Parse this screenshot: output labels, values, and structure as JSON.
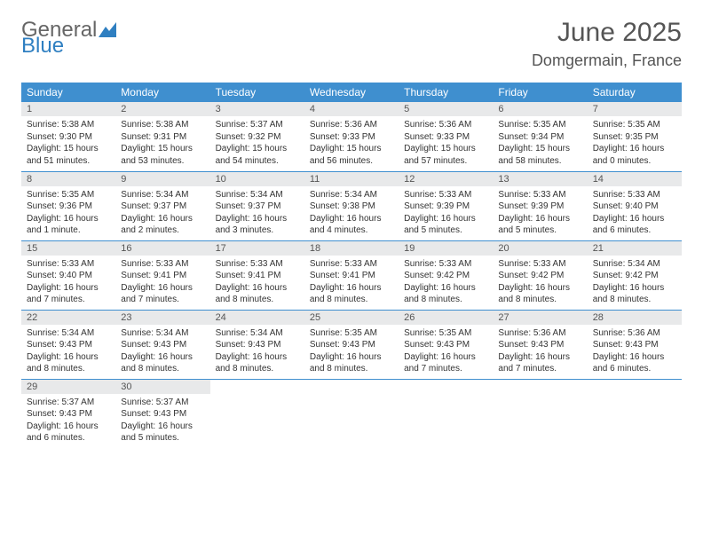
{
  "logo": {
    "general": "General",
    "blue": "Blue"
  },
  "title": "June 2025",
  "location": "Domgermain, France",
  "weekdays": [
    "Sunday",
    "Monday",
    "Tuesday",
    "Wednesday",
    "Thursday",
    "Friday",
    "Saturday"
  ],
  "header_bg": "#3f8fcf",
  "daynum_bg": "#e8e9ea",
  "border_color": "#3f8fcf",
  "cells": [
    {
      "n": "1",
      "sr": "Sunrise: 5:38 AM",
      "ss": "Sunset: 9:30 PM",
      "dl": "Daylight: 15 hours and 51 minutes."
    },
    {
      "n": "2",
      "sr": "Sunrise: 5:38 AM",
      "ss": "Sunset: 9:31 PM",
      "dl": "Daylight: 15 hours and 53 minutes."
    },
    {
      "n": "3",
      "sr": "Sunrise: 5:37 AM",
      "ss": "Sunset: 9:32 PM",
      "dl": "Daylight: 15 hours and 54 minutes."
    },
    {
      "n": "4",
      "sr": "Sunrise: 5:36 AM",
      "ss": "Sunset: 9:33 PM",
      "dl": "Daylight: 15 hours and 56 minutes."
    },
    {
      "n": "5",
      "sr": "Sunrise: 5:36 AM",
      "ss": "Sunset: 9:33 PM",
      "dl": "Daylight: 15 hours and 57 minutes."
    },
    {
      "n": "6",
      "sr": "Sunrise: 5:35 AM",
      "ss": "Sunset: 9:34 PM",
      "dl": "Daylight: 15 hours and 58 minutes."
    },
    {
      "n": "7",
      "sr": "Sunrise: 5:35 AM",
      "ss": "Sunset: 9:35 PM",
      "dl": "Daylight: 16 hours and 0 minutes."
    },
    {
      "n": "8",
      "sr": "Sunrise: 5:35 AM",
      "ss": "Sunset: 9:36 PM",
      "dl": "Daylight: 16 hours and 1 minute."
    },
    {
      "n": "9",
      "sr": "Sunrise: 5:34 AM",
      "ss": "Sunset: 9:37 PM",
      "dl": "Daylight: 16 hours and 2 minutes."
    },
    {
      "n": "10",
      "sr": "Sunrise: 5:34 AM",
      "ss": "Sunset: 9:37 PM",
      "dl": "Daylight: 16 hours and 3 minutes."
    },
    {
      "n": "11",
      "sr": "Sunrise: 5:34 AM",
      "ss": "Sunset: 9:38 PM",
      "dl": "Daylight: 16 hours and 4 minutes."
    },
    {
      "n": "12",
      "sr": "Sunrise: 5:33 AM",
      "ss": "Sunset: 9:39 PM",
      "dl": "Daylight: 16 hours and 5 minutes."
    },
    {
      "n": "13",
      "sr": "Sunrise: 5:33 AM",
      "ss": "Sunset: 9:39 PM",
      "dl": "Daylight: 16 hours and 5 minutes."
    },
    {
      "n": "14",
      "sr": "Sunrise: 5:33 AM",
      "ss": "Sunset: 9:40 PM",
      "dl": "Daylight: 16 hours and 6 minutes."
    },
    {
      "n": "15",
      "sr": "Sunrise: 5:33 AM",
      "ss": "Sunset: 9:40 PM",
      "dl": "Daylight: 16 hours and 7 minutes."
    },
    {
      "n": "16",
      "sr": "Sunrise: 5:33 AM",
      "ss": "Sunset: 9:41 PM",
      "dl": "Daylight: 16 hours and 7 minutes."
    },
    {
      "n": "17",
      "sr": "Sunrise: 5:33 AM",
      "ss": "Sunset: 9:41 PM",
      "dl": "Daylight: 16 hours and 8 minutes."
    },
    {
      "n": "18",
      "sr": "Sunrise: 5:33 AM",
      "ss": "Sunset: 9:41 PM",
      "dl": "Daylight: 16 hours and 8 minutes."
    },
    {
      "n": "19",
      "sr": "Sunrise: 5:33 AM",
      "ss": "Sunset: 9:42 PM",
      "dl": "Daylight: 16 hours and 8 minutes."
    },
    {
      "n": "20",
      "sr": "Sunrise: 5:33 AM",
      "ss": "Sunset: 9:42 PM",
      "dl": "Daylight: 16 hours and 8 minutes."
    },
    {
      "n": "21",
      "sr": "Sunrise: 5:34 AM",
      "ss": "Sunset: 9:42 PM",
      "dl": "Daylight: 16 hours and 8 minutes."
    },
    {
      "n": "22",
      "sr": "Sunrise: 5:34 AM",
      "ss": "Sunset: 9:43 PM",
      "dl": "Daylight: 16 hours and 8 minutes."
    },
    {
      "n": "23",
      "sr": "Sunrise: 5:34 AM",
      "ss": "Sunset: 9:43 PM",
      "dl": "Daylight: 16 hours and 8 minutes."
    },
    {
      "n": "24",
      "sr": "Sunrise: 5:34 AM",
      "ss": "Sunset: 9:43 PM",
      "dl": "Daylight: 16 hours and 8 minutes."
    },
    {
      "n": "25",
      "sr": "Sunrise: 5:35 AM",
      "ss": "Sunset: 9:43 PM",
      "dl": "Daylight: 16 hours and 8 minutes."
    },
    {
      "n": "26",
      "sr": "Sunrise: 5:35 AM",
      "ss": "Sunset: 9:43 PM",
      "dl": "Daylight: 16 hours and 7 minutes."
    },
    {
      "n": "27",
      "sr": "Sunrise: 5:36 AM",
      "ss": "Sunset: 9:43 PM",
      "dl": "Daylight: 16 hours and 7 minutes."
    },
    {
      "n": "28",
      "sr": "Sunrise: 5:36 AM",
      "ss": "Sunset: 9:43 PM",
      "dl": "Daylight: 16 hours and 6 minutes."
    },
    {
      "n": "29",
      "sr": "Sunrise: 5:37 AM",
      "ss": "Sunset: 9:43 PM",
      "dl": "Daylight: 16 hours and 6 minutes."
    },
    {
      "n": "30",
      "sr": "Sunrise: 5:37 AM",
      "ss": "Sunset: 9:43 PM",
      "dl": "Daylight: 16 hours and 5 minutes."
    }
  ]
}
